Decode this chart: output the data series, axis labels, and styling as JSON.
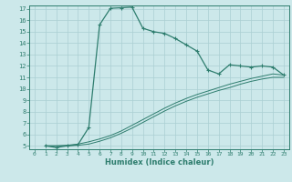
{
  "title": "",
  "xlabel": "Humidex (Indice chaleur)",
  "ylabel": "",
  "bg_color": "#cce8ea",
  "line_color": "#2e7d6e",
  "grid_color": "#aacfd2",
  "xlim": [
    -0.5,
    23.5
  ],
  "ylim": [
    4.7,
    17.3
  ],
  "xticks": [
    0,
    1,
    2,
    3,
    4,
    5,
    6,
    7,
    8,
    9,
    10,
    11,
    12,
    13,
    14,
    15,
    16,
    17,
    18,
    19,
    20,
    21,
    22,
    23
  ],
  "yticks": [
    5,
    6,
    7,
    8,
    9,
    10,
    11,
    12,
    13,
    14,
    15,
    16,
    17
  ],
  "series1_x": [
    1,
    2,
    3,
    4,
    5,
    6,
    7,
    8,
    9,
    10,
    11,
    12,
    13,
    14,
    15,
    16,
    17,
    18,
    19,
    20,
    21,
    22,
    23
  ],
  "series1_y": [
    5.0,
    4.85,
    5.0,
    5.1,
    6.6,
    15.6,
    17.05,
    17.1,
    17.15,
    15.3,
    15.0,
    14.85,
    14.4,
    13.85,
    13.3,
    11.65,
    11.3,
    12.1,
    12.0,
    11.9,
    12.0,
    11.9,
    11.2
  ],
  "series2_x": [
    1,
    2,
    3,
    4,
    5,
    6,
    7,
    8,
    9,
    10,
    11,
    12,
    13,
    14,
    15,
    16,
    17,
    18,
    19,
    20,
    21,
    22,
    23
  ],
  "series2_y": [
    5.0,
    5.0,
    5.05,
    5.15,
    5.35,
    5.6,
    5.9,
    6.3,
    6.8,
    7.3,
    7.8,
    8.3,
    8.75,
    9.15,
    9.5,
    9.8,
    10.1,
    10.4,
    10.65,
    10.9,
    11.1,
    11.3,
    11.2
  ],
  "series3_x": [
    1,
    2,
    3,
    4,
    5,
    6,
    7,
    8,
    9,
    10,
    11,
    12,
    13,
    14,
    15,
    16,
    17,
    18,
    19,
    20,
    21,
    22,
    23
  ],
  "series3_y": [
    5.0,
    5.0,
    5.0,
    5.05,
    5.15,
    5.4,
    5.7,
    6.1,
    6.55,
    7.05,
    7.55,
    8.05,
    8.5,
    8.9,
    9.25,
    9.55,
    9.85,
    10.1,
    10.4,
    10.65,
    10.85,
    11.0,
    11.0
  ]
}
